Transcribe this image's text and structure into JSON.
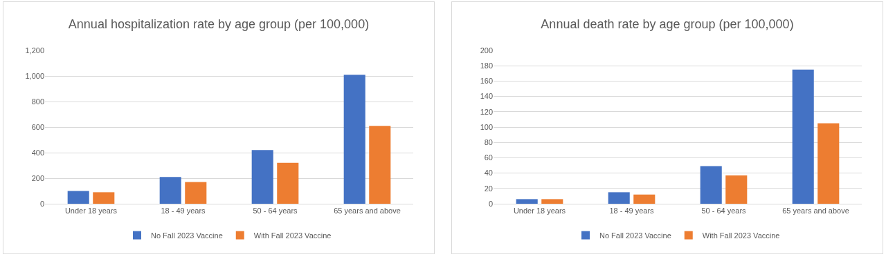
{
  "chart_data": [
    {
      "type": "bar",
      "title": "Annual hospitalization rate by age group (per 100,000)",
      "categories": [
        "Under 18 years",
        "18 - 49 years",
        "50 - 64 years",
        "65 years and above"
      ],
      "series": [
        {
          "name": "No Fall 2023 Vaccine",
          "color": "#4472c4",
          "values": [
            100,
            210,
            420,
            1010
          ]
        },
        {
          "name": "With Fall 2023 Vaccine",
          "color": "#ed7d31",
          "values": [
            90,
            170,
            320,
            610
          ]
        }
      ],
      "ylim": [
        0,
        1200
      ],
      "yticks": [
        0,
        {
          "value": 200,
          "label": "200"
        },
        {
          "value": 400,
          "label": "400"
        },
        {
          "value": 600,
          "label": "600"
        },
        {
          "value": 800,
          "label": "800"
        },
        {
          "value": 1000,
          "label": "1,000"
        },
        {
          "value": 1200,
          "label": "1,200"
        }
      ],
      "grid": "y",
      "legend": "bottom"
    },
    {
      "type": "bar",
      "title": "Annual death rate by age group (per 100,000)",
      "categories": [
        "Under 18 years",
        "18 - 49 years",
        "50 - 64 years",
        "65 years and above"
      ],
      "series": [
        {
          "name": "No Fall 2023 Vaccine",
          "color": "#4472c4",
          "values": [
            6,
            15,
            49,
            175
          ]
        },
        {
          "name": "With Fall 2023 Vaccine",
          "color": "#ed7d31",
          "values": [
            6,
            12,
            37,
            105
          ]
        }
      ],
      "ylim": [
        0,
        200
      ],
      "yticks": [
        0,
        20,
        40,
        60,
        80,
        100,
        120,
        140,
        160,
        180,
        200
      ],
      "grid": "y",
      "legend": "bottom"
    }
  ]
}
